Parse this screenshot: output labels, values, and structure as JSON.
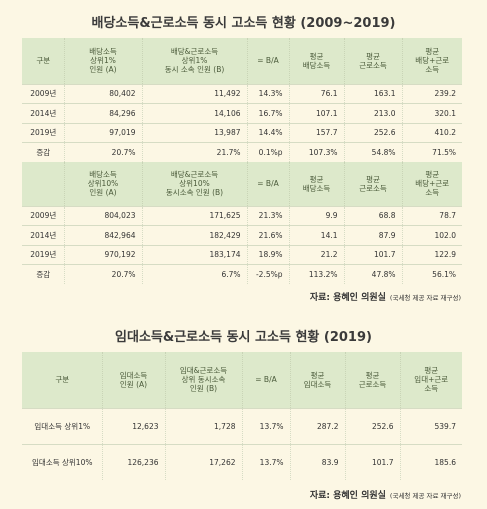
{
  "section1": {
    "title": "배당소득&근로소득 동시 고소득 현황 (2009~2019)",
    "header_top": [
      [
        "구분"
      ],
      [
        "배당소득",
        "상위1%",
        "인원 (A)"
      ],
      [
        "배당&근로소득",
        "상위1%",
        "동시 소속 인원 (B)"
      ],
      [
        "= B/A"
      ],
      [
        "평균",
        "배당소득"
      ],
      [
        "평균",
        "근로소득"
      ],
      [
        "평균",
        "배당+근로",
        "소득"
      ]
    ],
    "rows_top": [
      [
        "2009년",
        "80,402",
        "11,492",
        "14.3%",
        "76.1",
        "163.1",
        "239.2"
      ],
      [
        "2014년",
        "84,296",
        "14,106",
        "16.7%",
        "107.1",
        "213.0",
        "320.1"
      ],
      [
        "2019년",
        "97,019",
        "13,987",
        "14.4%",
        "157.7",
        "252.6",
        "410.2"
      ],
      [
        "증감",
        "20.7%",
        "21.7%",
        "0.1%p",
        "107.3%",
        "54.8%",
        "71.5%"
      ]
    ],
    "header_bottom": [
      [
        "배당소득",
        "상위10%",
        "인원 (A)"
      ],
      [
        "배당&근로소득",
        "상위10%",
        "동시소속 인원 (B)"
      ],
      [
        "= B/A"
      ],
      [
        "평균",
        "배당소득"
      ],
      [
        "평균",
        "근로소득"
      ],
      [
        "평균",
        "배당+근로",
        "소득"
      ]
    ],
    "rows_bottom": [
      [
        "2009년",
        "804,023",
        "171,625",
        "21.3%",
        "9.9",
        "68.8",
        "78.7"
      ],
      [
        "2014년",
        "842,964",
        "182,429",
        "21.6%",
        "14.1",
        "87.9",
        "102.0"
      ],
      [
        "2019년",
        "970,192",
        "183,174",
        "18.9%",
        "21.2",
        "101.7",
        "122.9"
      ],
      [
        "증감",
        "20.7%",
        "6.7%",
        "-2.5%p",
        "113.2%",
        "47.8%",
        "56.1%"
      ]
    ],
    "source": {
      "label": "자료: 용혜인 의원실",
      "note": "(국세청 제공 자료 재구성)"
    }
  },
  "section2": {
    "title": "임대소득&근로소득 동시 고소득 현황 (2019)",
    "header": [
      [
        "구분"
      ],
      [
        "임대소득",
        "인원 (A)"
      ],
      [
        "임대&근로소득",
        "상위 동시소속",
        "인원 (B)"
      ],
      [
        "= B/A"
      ],
      [
        "평균",
        "임대소득"
      ],
      [
        "평균",
        "근로소득"
      ],
      [
        "평균",
        "임대+근로",
        "소득"
      ]
    ],
    "rows": [
      [
        "임대소득 상위1%",
        "12,623",
        "1,728",
        "13.7%",
        "287.2",
        "252.6",
        "539.7"
      ],
      [
        "임대소득 상위10%",
        "126,236",
        "17,262",
        "13.7%",
        "83.9",
        "101.7",
        "185.6"
      ]
    ],
    "source": {
      "label": "자료: 용혜인 의원실",
      "note": "(국세청 제공 자료 재구성)"
    }
  }
}
